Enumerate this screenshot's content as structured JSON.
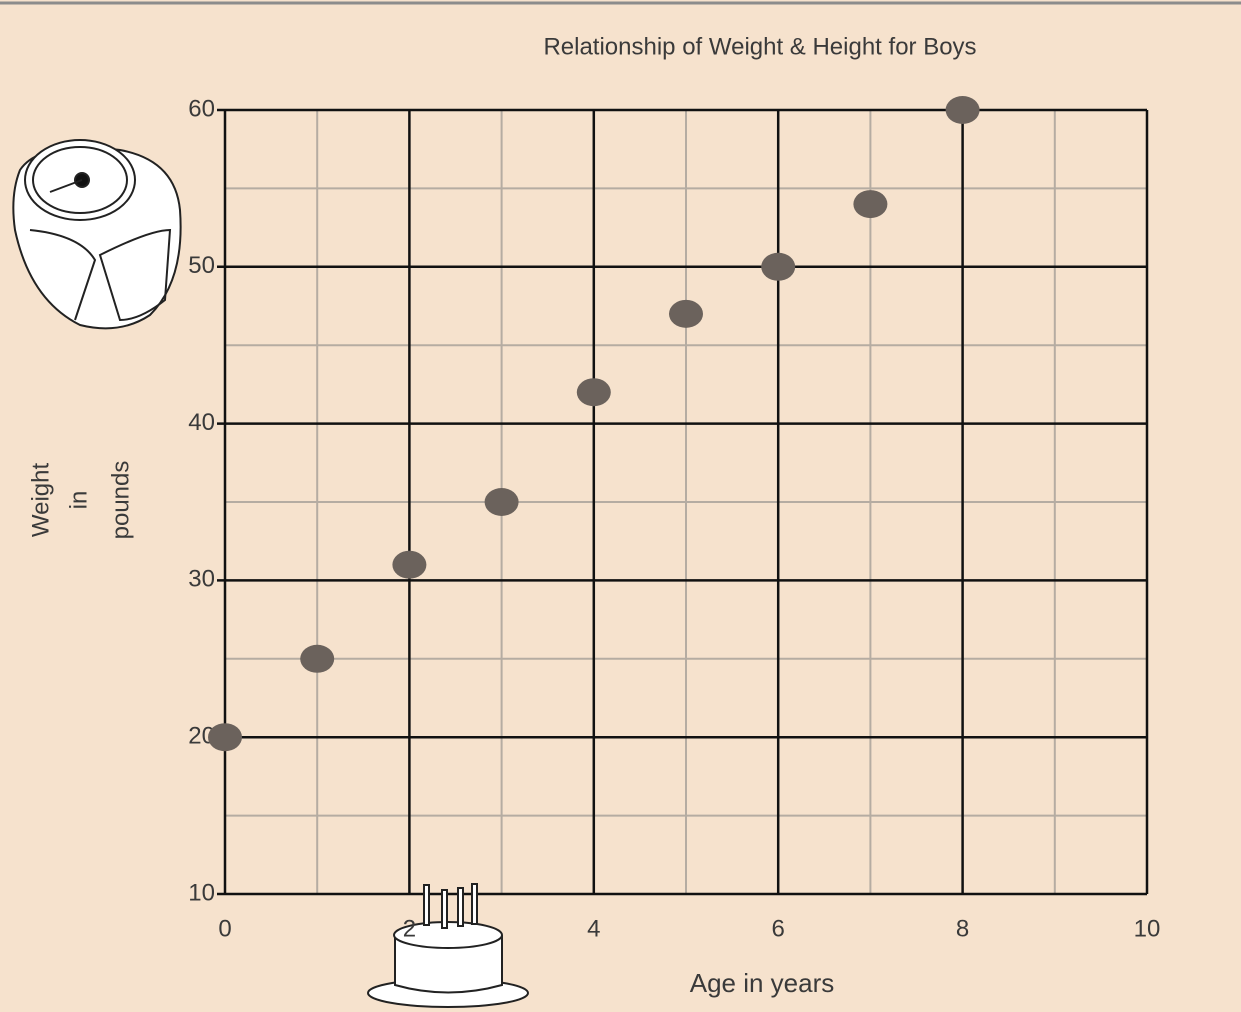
{
  "chart_data": {
    "type": "scatter",
    "title": "Relationship of Weight & Height for Boys",
    "xlabel": "Age in years",
    "ylabel": [
      "Weight",
      "in",
      "pounds"
    ],
    "x": [
      0,
      1,
      2,
      3,
      4,
      5,
      6,
      7,
      8
    ],
    "series": [
      {
        "color": "#6b625c",
        "values": [
          20,
          25,
          31,
          35,
          42,
          47,
          50,
          54,
          60
        ]
      }
    ],
    "xlim": [
      0,
      10
    ],
    "xticks": [
      0,
      2,
      4,
      6,
      8,
      10
    ],
    "ylim": [
      10,
      60
    ],
    "yticks": [
      10,
      20,
      30,
      40,
      50,
      60
    ],
    "grid": true
  }
}
